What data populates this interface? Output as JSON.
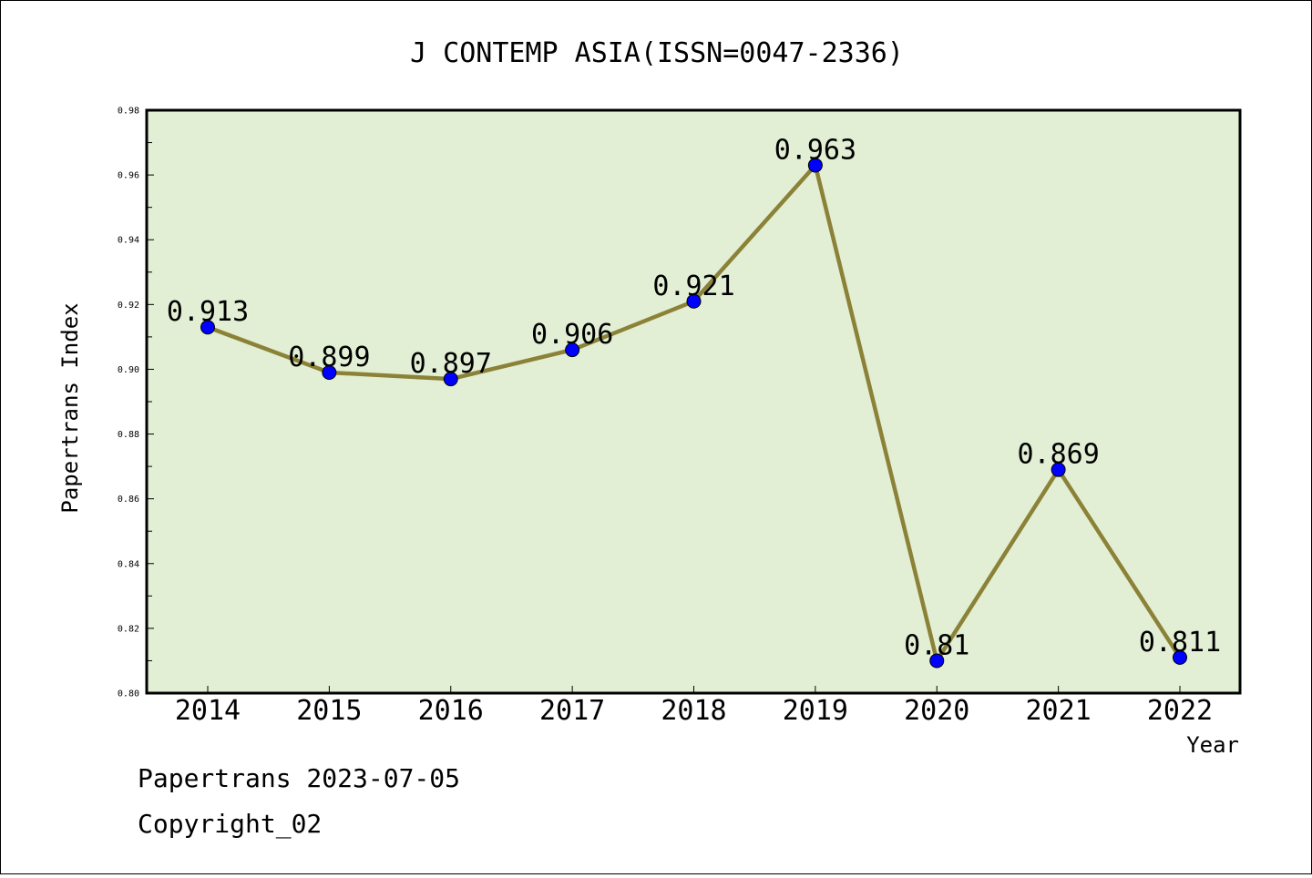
{
  "chart_data": {
    "type": "line",
    "title": "J CONTEMP ASIA(ISSN=0047-2336)",
    "xlabel": "Year",
    "ylabel": "Papertrans Index",
    "categories": [
      "2014",
      "2015",
      "2016",
      "2017",
      "2018",
      "2019",
      "2020",
      "2021",
      "2022"
    ],
    "series": [
      {
        "values": [
          0.913,
          0.899,
          0.897,
          0.906,
          0.921,
          0.963,
          0.81,
          0.869,
          0.811
        ],
        "data_labels": [
          "0.913",
          "0.899",
          "0.897",
          "0.906",
          "0.921",
          "0.963",
          "0.81",
          "0.869",
          "0.811"
        ],
        "line_color": "#8b8238",
        "marker_color": "#0000ff"
      }
    ],
    "ylim": [
      0.8,
      0.98
    ],
    "yticks": [
      "0.80",
      "0.82",
      "0.84",
      "0.86",
      "0.88",
      "0.90",
      "0.92",
      "0.94",
      "0.96",
      "0.98"
    ],
    "plot_background": "#e2efd4",
    "grid": false,
    "legend": "none"
  },
  "footer": {
    "line1": "Papertrans 2023-07-05",
    "line2": "Copyright_02"
  }
}
